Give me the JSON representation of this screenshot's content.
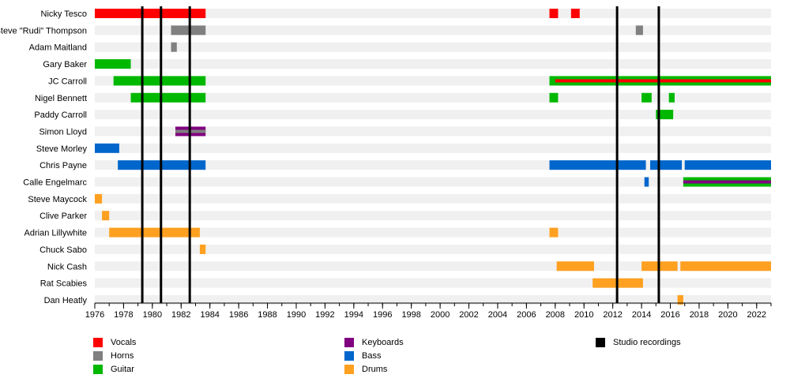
{
  "chart_data": {
    "type": "timeline",
    "x_axis": {
      "min": 1976,
      "max": 2023,
      "tick_labels": [
        "1976",
        "1978",
        "1980",
        "1982",
        "1984",
        "1986",
        "1988",
        "1990",
        "1992",
        "1994",
        "1996",
        "1998",
        "2000",
        "2002",
        "2004",
        "2006",
        "2008",
        "2010",
        "2012",
        "2014",
        "2016",
        "2018",
        "2020",
        "2022"
      ]
    },
    "colors": {
      "Vocals": "#ff0000",
      "Horns": "#808080",
      "Guitar": "#00b800",
      "Keyboards": "#800080",
      "Bass": "#0066cc",
      "Drums": "#ffa020",
      "Studio recordings": "#000000",
      "row_band": "#f0f0f0"
    },
    "members": [
      {
        "name": "Nicky Tesco",
        "periods": [
          {
            "role": "Vocals",
            "start": 1976.0,
            "end": 1983.7
          },
          {
            "role": "Vocals",
            "start": 2007.6,
            "end": 2008.2
          },
          {
            "role": "Vocals",
            "start": 2009.1,
            "end": 2009.7
          }
        ]
      },
      {
        "name": "Steve \"Rudi\" Thompson",
        "periods": [
          {
            "role": "Horns",
            "start": 1981.3,
            "end": 1983.7
          },
          {
            "role": "Horns",
            "start": 2013.6,
            "end": 2014.1
          }
        ]
      },
      {
        "name": "Adam Maitland",
        "periods": [
          {
            "role": "Horns",
            "start": 1981.3,
            "end": 1981.7
          }
        ]
      },
      {
        "name": "Gary Baker",
        "periods": [
          {
            "role": "Guitar",
            "start": 1976.0,
            "end": 1978.5
          }
        ]
      },
      {
        "name": "JC Carroll",
        "periods": [
          {
            "role": "Guitar",
            "start": 1977.3,
            "end": 1983.7
          },
          {
            "role": "Guitar",
            "start": 2007.6,
            "end": 2023.0,
            "secondary": "Vocals",
            "secondary_start": 2008.0,
            "secondary_end": 2023.0
          }
        ]
      },
      {
        "name": "Nigel Bennett",
        "periods": [
          {
            "role": "Guitar",
            "start": 1978.5,
            "end": 1983.7
          },
          {
            "role": "Guitar",
            "start": 2007.6,
            "end": 2008.2
          },
          {
            "role": "Guitar",
            "start": 2014.0,
            "end": 2014.7
          },
          {
            "role": "Guitar",
            "start": 2015.9,
            "end": 2016.3
          }
        ]
      },
      {
        "name": "Paddy Carroll",
        "periods": [
          {
            "role": "Guitar",
            "start": 2015.0,
            "end": 2016.2
          }
        ]
      },
      {
        "name": "Simon Lloyd",
        "periods": [
          {
            "role": "Keyboards",
            "start": 1981.6,
            "end": 1983.7,
            "secondary": "Horns",
            "secondary_start": 1981.6,
            "secondary_end": 1983.7
          }
        ]
      },
      {
        "name": "Steve Morley",
        "periods": [
          {
            "role": "Bass",
            "start": 1976.0,
            "end": 1977.7
          }
        ]
      },
      {
        "name": "Chris Payne",
        "periods": [
          {
            "role": "Bass",
            "start": 1977.6,
            "end": 1983.7
          },
          {
            "role": "Bass",
            "start": 2007.6,
            "end": 2014.3
          },
          {
            "role": "Bass",
            "start": 2014.6,
            "end": 2016.8
          },
          {
            "role": "Bass",
            "start": 2017.0,
            "end": 2023.0
          }
        ]
      },
      {
        "name": "Calle Engelmarc",
        "periods": [
          {
            "role": "Bass",
            "start": 2014.2,
            "end": 2014.5
          },
          {
            "role": "Guitar",
            "start": 2016.9,
            "end": 2023.0,
            "secondary": "Keyboards",
            "secondary_start": 2016.9,
            "secondary_end": 2023.0
          }
        ]
      },
      {
        "name": "Steve Maycock",
        "periods": [
          {
            "role": "Drums",
            "start": 1976.0,
            "end": 1976.5
          }
        ]
      },
      {
        "name": "Clive Parker",
        "periods": [
          {
            "role": "Drums",
            "start": 1976.5,
            "end": 1977.0
          }
        ]
      },
      {
        "name": "Adrian Lillywhite",
        "periods": [
          {
            "role": "Drums",
            "start": 1977.0,
            "end": 1983.3
          },
          {
            "role": "Drums",
            "start": 2007.6,
            "end": 2008.2
          }
        ]
      },
      {
        "name": "Chuck Sabo",
        "periods": [
          {
            "role": "Drums",
            "start": 1983.3,
            "end": 1983.7
          }
        ]
      },
      {
        "name": "Nick Cash",
        "periods": [
          {
            "role": "Drums",
            "start": 2008.1,
            "end": 2010.7
          },
          {
            "role": "Drums",
            "start": 2014.0,
            "end": 2016.5
          },
          {
            "role": "Drums",
            "start": 2016.7,
            "end": 2023.0
          }
        ]
      },
      {
        "name": "Rat Scabies",
        "periods": [
          {
            "role": "Drums",
            "start": 2010.6,
            "end": 2014.1
          }
        ]
      },
      {
        "name": "Dan Heatly",
        "periods": [
          {
            "role": "Drums",
            "start": 2016.5,
            "end": 2016.9
          }
        ]
      }
    ],
    "studio_recordings": [
      1979.3,
      1980.6,
      1982.6,
      2012.3,
      2015.2
    ],
    "legend": [
      {
        "label": "Vocals",
        "role": "Vocals"
      },
      {
        "label": "Horns",
        "role": "Horns"
      },
      {
        "label": "Guitar",
        "role": "Guitar"
      },
      {
        "label": "Keyboards",
        "role": "Keyboards"
      },
      {
        "label": "Bass",
        "role": "Bass"
      },
      {
        "label": "Drums",
        "role": "Drums"
      },
      {
        "label": "Studio recordings",
        "role": "Studio recordings"
      }
    ]
  }
}
